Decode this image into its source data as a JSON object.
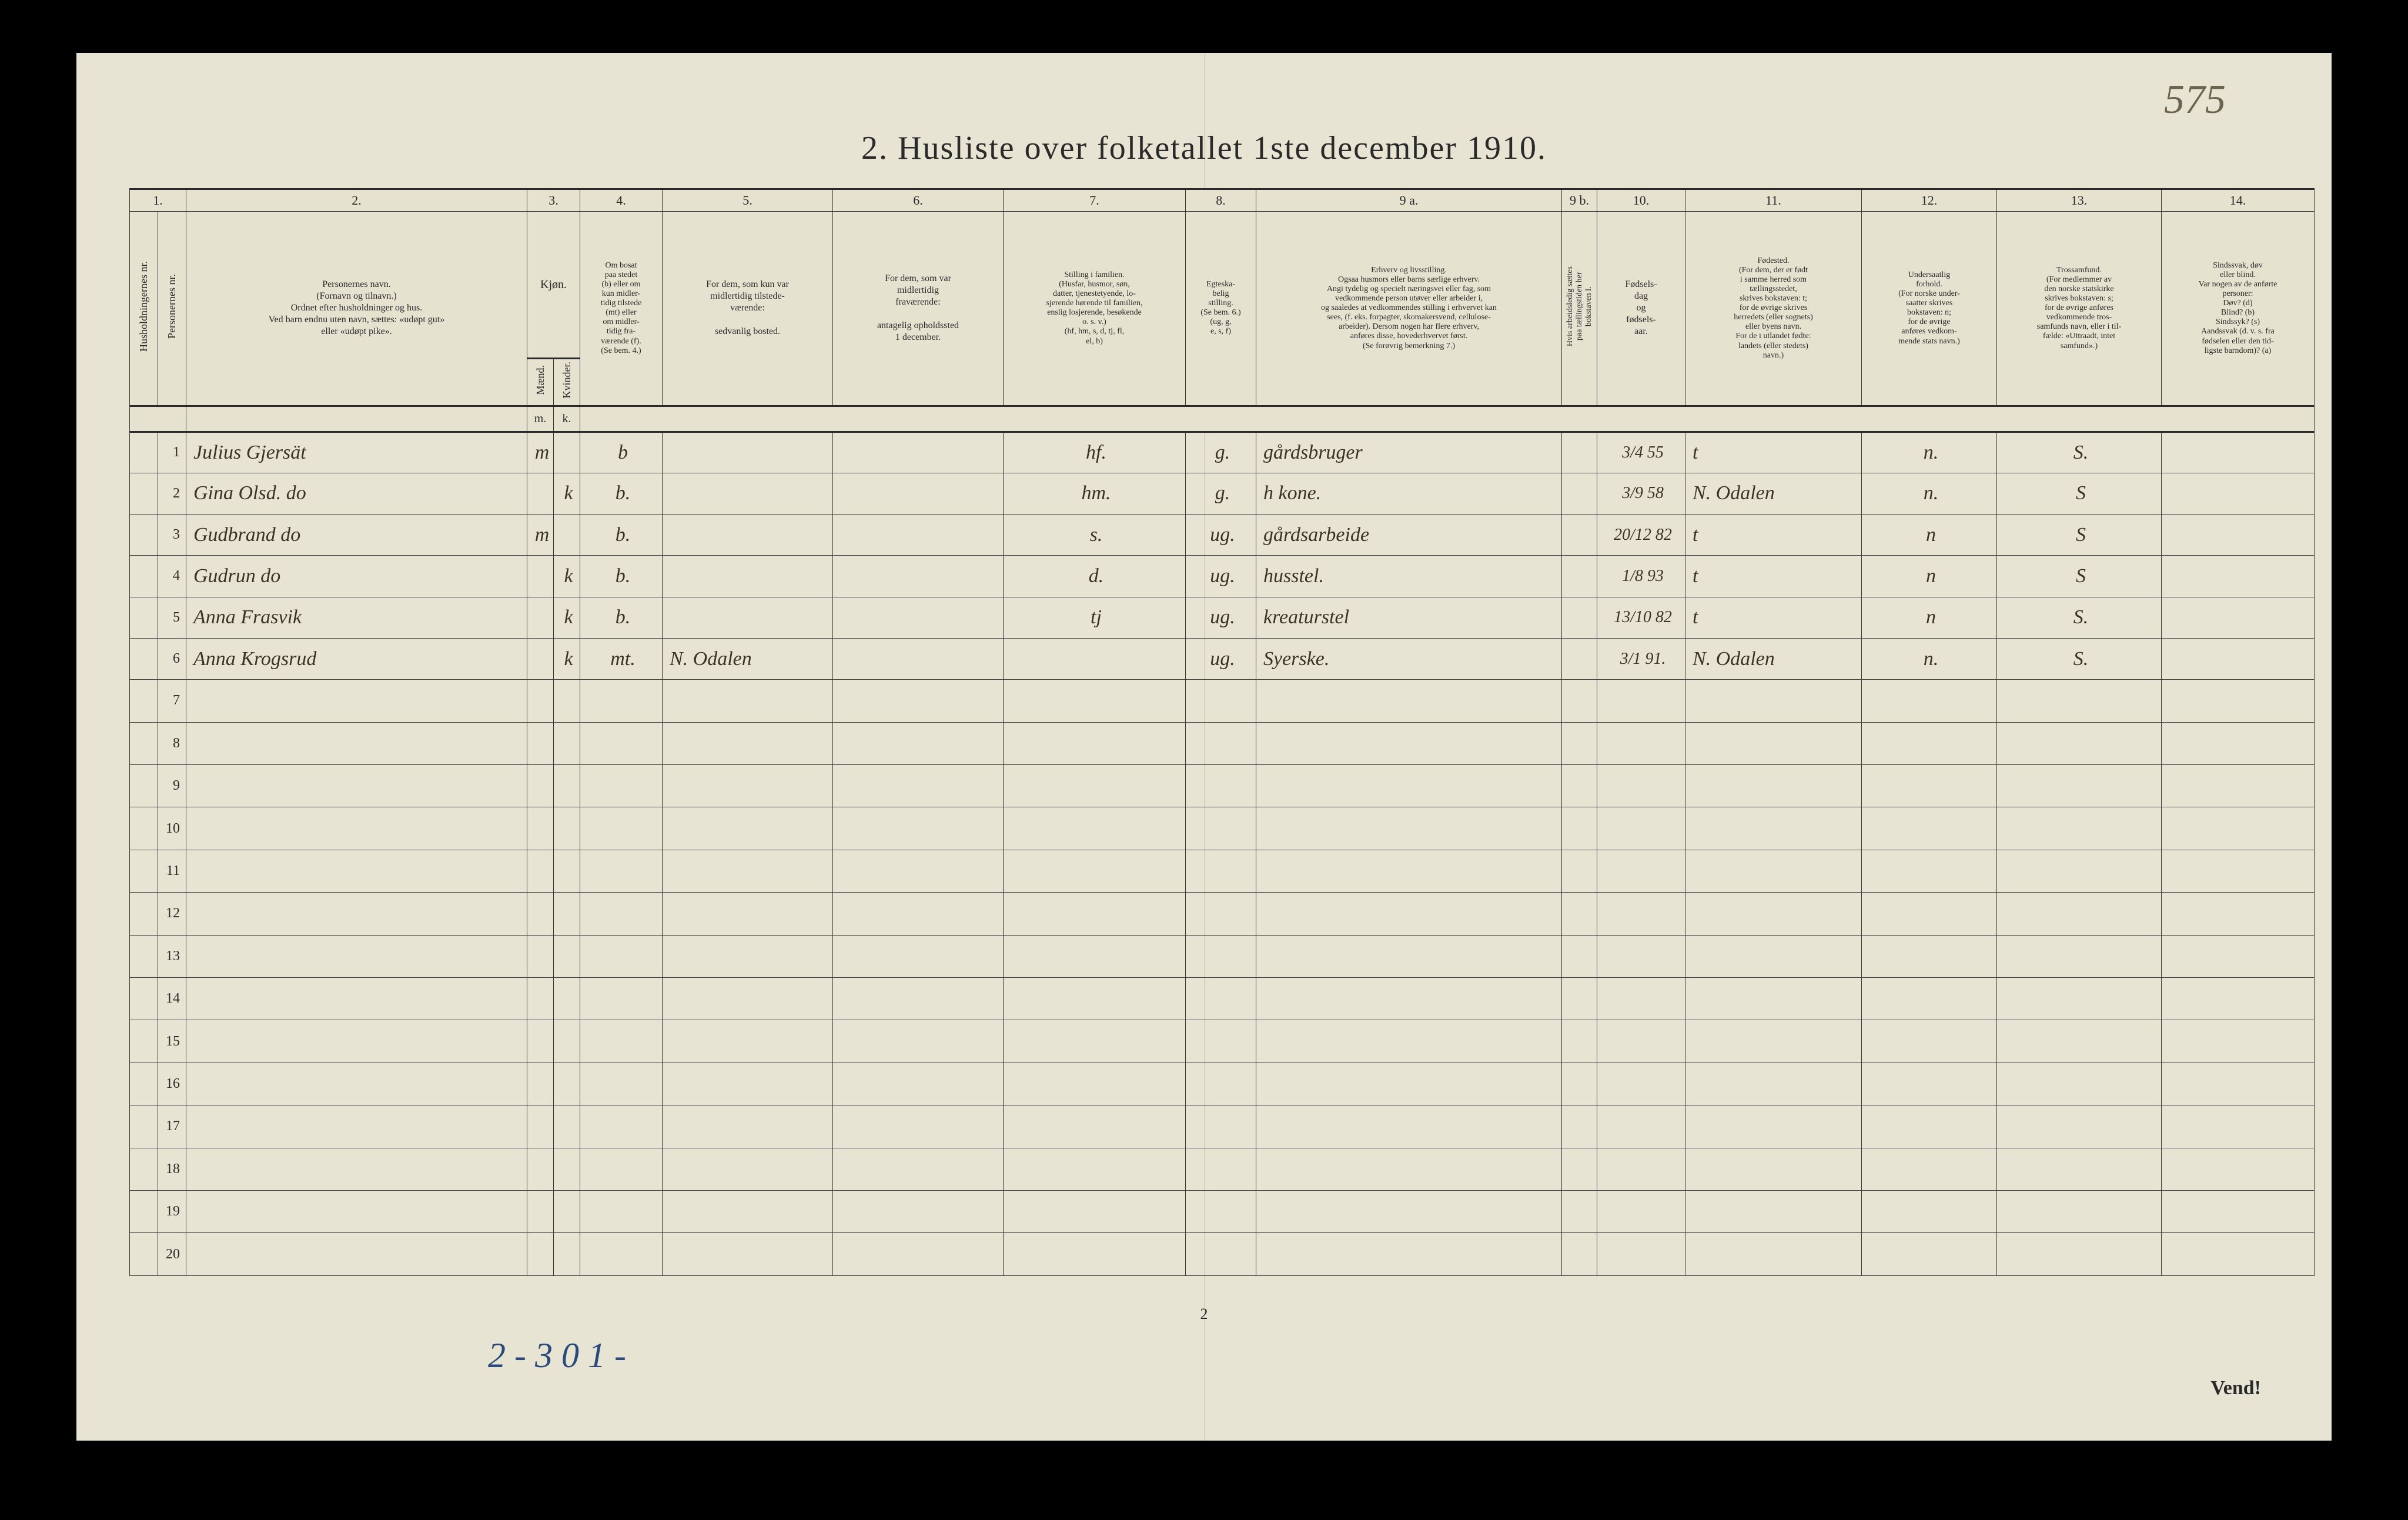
{
  "page_number_handwritten": "575",
  "title": "2.  Husliste over folketallet 1ste december 1910.",
  "bottom_handwritten": "2 - 3 0 1 -",
  "footer_page": "2",
  "vend": "Vend!",
  "columns": {
    "colnums": [
      "1.",
      "2.",
      "3.",
      "4.",
      "5.",
      "6.",
      "7.",
      "8.",
      "9 a.",
      "9 b.",
      "10.",
      "11.",
      "12.",
      "13.",
      "14."
    ],
    "h1a": "Husholdningernes nr.",
    "h1b": "Personernes nr.",
    "h2": "Personernes navn.\n(Fornavn og tilnavn.)\nOrdnet efter husholdninger og hus.\nVed barn endnu uten navn, sættes: «udøpt gut»\neller «udøpt pike».",
    "h3": "Kjøn.",
    "h3a": "Mænd.",
    "h3b": "Kvinder.",
    "h3_mk_m": "m.",
    "h3_mk_k": "k.",
    "h4": "Om bosat\npaa stedet\n(b) eller om\nkun midler-\ntidig tilstede\n(mt) eller\nom midler-\ntidig fra-\nværende (f).\n(Se bem. 4.)",
    "h5": "For dem, som kun var\nmidlertidig tilstede-\nværende:\n\nsedvanlig bosted.",
    "h6": "For dem, som var\nmidlertidig\nfraværende:\n\nantagelig opholdssted\n1 december.",
    "h7": "Stilling i familien.\n(Husfar, husmor, søn,\ndatter, tjenestetyende, lo-\nsjerende hørende til familien,\nenslig losjerende, besøkende\no. s. v.)\n(hf, hm, s, d, tj, fl,\nel, b)",
    "h8": "Egteska-\nbelig\nstilling.\n(Se bem. 6.)\n(ug, g,\ne, s, f)",
    "h9a": "Erhverv og livsstilling.\nOgsaa husmors eller barns særlige erhverv.\nAngi tydelig og specielt næringsvei eller fag, som\nvedkommende person utøver eller arbeider i,\nog saaledes at vedkommendes stilling i erhvervet kan\nsees, (f. eks. forpagter, skomakersvend, cellulose-\narbeider). Dersom nogen har flere erhverv,\nanføres disse, hovederhvervet først.\n(Se forøvrig bemerkning 7.)",
    "h9b": "Hvis arbeidsledig sættes\npaa tællingstiden her\nbokstaven l.",
    "h10": "Fødsels-\ndag\nog\nfødsels-\naar.",
    "h11": "Fødested.\n(For dem, der er født\ni samme herred som\ntællingsstedet,\nskrives bokstaven: t;\nfor de øvrige skrives\nherredets (eller sognets)\neller byens navn.\nFor de i utlandet fødte:\nlandets (eller stedets)\nnavn.)",
    "h12": "Undersaatlig\nforhold.\n(For norske under-\nsaatter skrives\nbokstaven: n;\nfor de øvrige\nanføres vedkom-\nmende stats navn.)",
    "h13": "Trossamfund.\n(For medlemmer av\nden norske statskirke\nskrives bokstaven: s;\nfor de øvrige anføres\nvedkommende tros-\nsamfunds navn, eller i til-\nfælde: «Uttraadt, intet\nsamfund».)",
    "h14": "Sindssvak, døv\neller blind.\nVar nogen av de anførte\npersoner:\nDøv?        (d)\nBlind?      (b)\nSindssyk?   (s)\nAandssvak (d. v. s. fra\nfødselen eller den tid-\nligste barndom)? (a)"
  },
  "rows": [
    {
      "n": "1",
      "name": "Julius Gjersät",
      "m": "m",
      "k": "",
      "res": "b",
      "away": "",
      "absent": "",
      "fam": "hf.",
      "mar": "g.",
      "occ": "gårdsbruger",
      "l": "",
      "birth": "3/4 55",
      "place": "t",
      "nat": "n.",
      "rel": "S."
    },
    {
      "n": "2",
      "name": "Gina Olsd. do",
      "m": "",
      "k": "k",
      "res": "b.",
      "away": "",
      "absent": "",
      "fam": "hm.",
      "mar": "g.",
      "occ": "h kone.",
      "l": "",
      "birth": "3/9 58",
      "place": "N. Odalen",
      "nat": "n.",
      "rel": "S"
    },
    {
      "n": "3",
      "name": "Gudbrand     do",
      "m": "m",
      "k": "",
      "res": "b.",
      "away": "",
      "absent": "",
      "fam": "s.",
      "mar": "ug.",
      "occ": "gårdsarbeide",
      "l": "",
      "birth": "20/12 82",
      "place": "t",
      "nat": "n",
      "rel": "S"
    },
    {
      "n": "4",
      "name": "Gudrun       do",
      "m": "",
      "k": "k",
      "res": "b.",
      "away": "",
      "absent": "",
      "fam": "d.",
      "mar": "ug.",
      "occ": "husstel.",
      "l": "",
      "birth": "1/8 93",
      "place": "t",
      "nat": "n",
      "rel": "S"
    },
    {
      "n": "5",
      "name": "Anna Frasvik",
      "m": "",
      "k": "k",
      "res": "b.",
      "away": "",
      "absent": "",
      "fam": "tj",
      "mar": "ug.",
      "occ": "kreaturstel",
      "l": "",
      "birth": "13/10 82",
      "place": "t",
      "nat": "n",
      "rel": "S."
    },
    {
      "n": "6",
      "name": "Anna Krogsrud",
      "m": "",
      "k": "k",
      "res": "mt.",
      "away": "N. Odalen",
      "absent": "",
      "fam": "",
      "mar": "ug.",
      "occ": "Syerske.",
      "l": "",
      "birth": "3/1 91.",
      "place": "N. Odalen",
      "nat": "n.",
      "rel": "S."
    }
  ],
  "empty_rows": [
    "7",
    "8",
    "9",
    "10",
    "11",
    "12",
    "13",
    "14",
    "15",
    "16",
    "17",
    "18",
    "19",
    "20"
  ],
  "widths": {
    "c1a": 48,
    "c1b": 48,
    "c2": 580,
    "c3a": 45,
    "c3b": 45,
    "c4": 140,
    "c5": 290,
    "c6": 290,
    "c7": 310,
    "c8": 120,
    "c9a": 520,
    "c9b": 60,
    "c10": 150,
    "c11": 300,
    "c12": 230,
    "c13": 280,
    "c14": 260
  },
  "colors": {
    "paper": "#e8e4d4",
    "ink": "#2a2a2a",
    "hand": "#3a3426",
    "blue": "#2a4a7a"
  }
}
